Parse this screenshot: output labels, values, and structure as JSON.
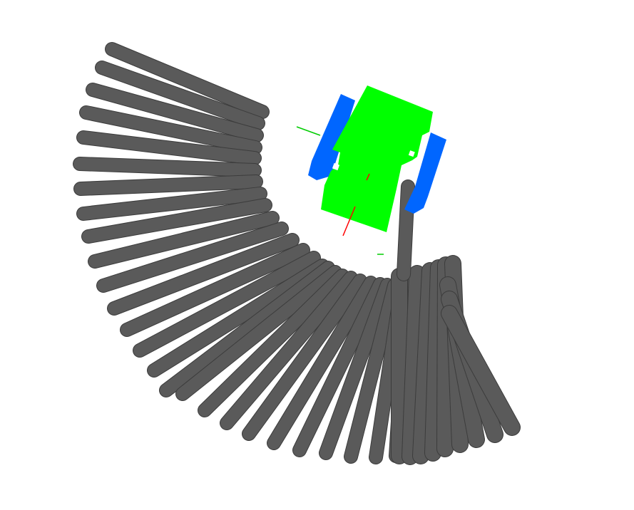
{
  "scene": {
    "background": "#ffffff",
    "rod_color": "#5a5a5a",
    "rod_edge_color": "#3c3c3c",
    "robot_body_color": "#00ff00",
    "robot_wheel_color": "#0066ff",
    "axis_x_color": "#ff0000",
    "axis_y_color": "#00cc00",
    "objects": [
      {
        "kind": "rod-fan",
        "icon": "cylinder-rod-icon",
        "rod_count": 37
      },
      {
        "kind": "robot",
        "icon": "robot-icon"
      },
      {
        "kind": "axis",
        "icon": "axis-x-icon"
      },
      {
        "kind": "axis",
        "icon": "axis-y-icon"
      }
    ]
  }
}
